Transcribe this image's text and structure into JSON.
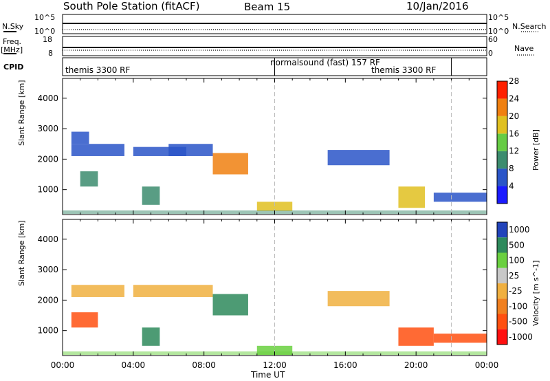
{
  "header": {
    "station": "South Pole Station (fitACF)",
    "beam": "Beam 15",
    "date": "10/Jan/2016"
  },
  "top_panels": {
    "nsky_label": "N.Sky",
    "nsearch_label": "N.Search",
    "freq_label": "Freq.",
    "freq_unit": "[MHz]",
    "nave_label": "Nave",
    "cpid_label": "CPID",
    "noise_ticks_left": [
      "10^5",
      "10^0"
    ],
    "noise_ticks_right": [
      "10^5",
      "10^0"
    ],
    "freq_ticks": [
      "18",
      "8"
    ],
    "nave_ticks": [
      "60",
      "0"
    ],
    "cpid_segments": [
      {
        "label": "themis 3300 RF",
        "start_hour": 0,
        "end_hour": 12
      },
      {
        "label": "normalsound (fast) 157 RF",
        "start_hour": 12,
        "end_hour": 22
      },
      {
        "label": "themis 3300 RF",
        "start_hour": 22,
        "end_hour": 24
      }
    ]
  },
  "chart_data": [
    {
      "type": "heatmap",
      "title": "Power",
      "ylabel": "Slant Range [km]",
      "xlabel": "Time UT",
      "ylim": [
        180,
        4650
      ],
      "xlim_hours": [
        0,
        24
      ],
      "x_ticks": [
        "00:00",
        "04:00",
        "08:00",
        "12:00",
        "16:00",
        "20:00",
        "00:00"
      ],
      "y_ticks": [
        1000,
        2000,
        3000,
        4000
      ],
      "colorbar": {
        "label": "Power [dB]",
        "ticks": [
          4,
          8,
          12,
          16,
          20,
          24,
          28
        ],
        "colors": [
          "#1a1aff",
          "#2a55c8",
          "#3c8c6e",
          "#66cc44",
          "#e0c020",
          "#f08010",
          "#ff2000"
        ]
      },
      "regions": [
        {
          "x": [
            0.5,
            3.5
          ],
          "y": [
            2100,
            2500
          ],
          "value": 8
        },
        {
          "x": [
            0.5,
            1.5
          ],
          "y": [
            2500,
            2900
          ],
          "value": 10
        },
        {
          "x": [
            1,
            2
          ],
          "y": [
            1100,
            1600
          ],
          "value": 12
        },
        {
          "x": [
            4,
            7
          ],
          "y": [
            2100,
            2400
          ],
          "value": 10
        },
        {
          "x": [
            6,
            8.5
          ],
          "y": [
            2100,
            2500
          ],
          "value": 8
        },
        {
          "x": [
            8.5,
            10.5
          ],
          "y": [
            1500,
            2200
          ],
          "value": 26
        },
        {
          "x": [
            4.5,
            5.5
          ],
          "y": [
            500,
            1100
          ],
          "value": 14
        },
        {
          "x": [
            11,
            13
          ],
          "y": [
            300,
            600
          ],
          "value": 20
        },
        {
          "x": [
            15,
            18.5
          ],
          "y": [
            1800,
            2300
          ],
          "value": 8
        },
        {
          "x": [
            19,
            20.5
          ],
          "y": [
            400,
            1100
          ],
          "value": 22
        },
        {
          "x": [
            21,
            24
          ],
          "y": [
            600,
            900
          ],
          "value": 10
        }
      ]
    },
    {
      "type": "heatmap",
      "title": "Velocity",
      "ylabel": "Slant Range [km]",
      "xlabel": "Time UT",
      "ylim": [
        180,
        4650
      ],
      "xlim_hours": [
        0,
        24
      ],
      "x_ticks": [
        "00:00",
        "04:00",
        "08:00",
        "12:00",
        "16:00",
        "20:00",
        "00:00"
      ],
      "y_ticks": [
        1000,
        2000,
        3000,
        4000
      ],
      "colorbar": {
        "label": "Velocity [m s^-1]",
        "ticks": [
          1000,
          500,
          100,
          25,
          -25,
          -100,
          -500,
          -1000
        ],
        "colors": [
          "#2244bb",
          "#2e8a5c",
          "#6ad040",
          "#c8c8c8",
          "#f0b040",
          "#f08020",
          "#ff5010",
          "#ff1010"
        ]
      },
      "regions": [
        {
          "x": [
            0.5,
            3.5
          ],
          "y": [
            2100,
            2500
          ],
          "value": 0
        },
        {
          "x": [
            4,
            8.5
          ],
          "y": [
            2100,
            2500
          ],
          "value": 0
        },
        {
          "x": [
            0.5,
            2
          ],
          "y": [
            1100,
            1600
          ],
          "value": -300
        },
        {
          "x": [
            8.5,
            10.5
          ],
          "y": [
            1500,
            2200
          ],
          "value": 800
        },
        {
          "x": [
            4.5,
            5.5
          ],
          "y": [
            500,
            1100
          ],
          "value": 600
        },
        {
          "x": [
            11,
            13
          ],
          "y": [
            200,
            500
          ],
          "value": 300
        },
        {
          "x": [
            15,
            18.5
          ],
          "y": [
            1800,
            2300
          ],
          "value": 0
        },
        {
          "x": [
            19,
            21
          ],
          "y": [
            500,
            1100
          ],
          "value": -400
        },
        {
          "x": [
            21,
            24
          ],
          "y": [
            600,
            900
          ],
          "value": -250
        }
      ]
    }
  ]
}
